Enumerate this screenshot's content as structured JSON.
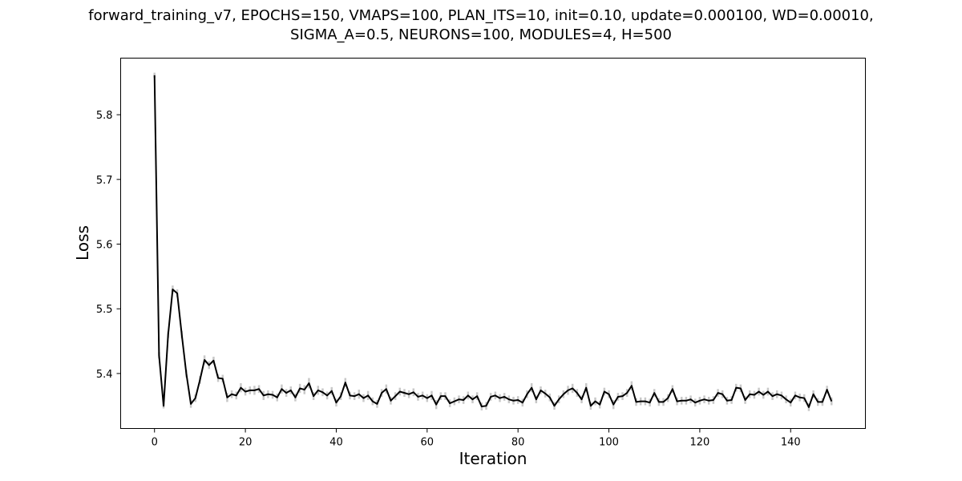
{
  "chart_data": {
    "type": "line",
    "title_lines": [
      "forward_training_v7, EPOCHS=150, VMAPS=100, PLAN_ITS=10, init=0.10, update=0.000100, WD=0.00010,",
      "SIGMA_A=0.5, NEURONS=100, MODULES=4, H=500"
    ],
    "xlabel": "Iteration",
    "ylabel": "Loss",
    "xlim": [
      -7.45,
      156.45
    ],
    "ylim": [
      5.315,
      5.8875
    ],
    "xticks": [
      0,
      20,
      40,
      60,
      80,
      100,
      120,
      140
    ],
    "yticks": [
      5.4,
      5.5,
      5.6,
      5.7,
      5.8
    ],
    "ytick_labels": [
      "5.4",
      "5.5",
      "5.6",
      "5.7",
      "5.8"
    ],
    "grid": false,
    "line_color": "#000000",
    "error_color": "#c8c8c8",
    "series": [
      {
        "values": [
          5.861,
          5.428,
          5.35,
          5.46,
          5.53,
          5.524,
          5.46,
          5.4,
          5.353,
          5.362,
          5.39,
          5.421,
          5.413,
          5.42,
          5.393,
          5.392,
          5.363,
          5.368,
          5.366,
          5.378,
          5.372,
          5.374,
          5.374,
          5.376,
          5.366,
          5.368,
          5.367,
          5.363,
          5.376,
          5.37,
          5.374,
          5.363,
          5.377,
          5.375,
          5.385,
          5.365,
          5.374,
          5.371,
          5.366,
          5.373,
          5.355,
          5.365,
          5.386,
          5.366,
          5.365,
          5.368,
          5.362,
          5.366,
          5.357,
          5.353,
          5.37,
          5.376,
          5.358,
          5.365,
          5.372,
          5.37,
          5.368,
          5.371,
          5.364,
          5.366,
          5.362,
          5.366,
          5.352,
          5.365,
          5.365,
          5.354,
          5.357,
          5.36,
          5.359,
          5.366,
          5.36,
          5.365,
          5.349,
          5.35,
          5.364,
          5.366,
          5.362,
          5.364,
          5.36,
          5.358,
          5.359,
          5.355,
          5.368,
          5.378,
          5.36,
          5.374,
          5.369,
          5.363,
          5.35,
          5.36,
          5.368,
          5.374,
          5.377,
          5.37,
          5.36,
          5.378,
          5.35,
          5.357,
          5.352,
          5.372,
          5.368,
          5.352,
          5.364,
          5.365,
          5.37,
          5.381,
          5.356,
          5.357,
          5.357,
          5.355,
          5.37,
          5.356,
          5.356,
          5.362,
          5.376,
          5.357,
          5.358,
          5.358,
          5.36,
          5.355,
          5.358,
          5.36,
          5.358,
          5.359,
          5.37,
          5.368,
          5.358,
          5.359,
          5.378,
          5.377,
          5.359,
          5.368,
          5.367,
          5.372,
          5.367,
          5.372,
          5.365,
          5.368,
          5.366,
          5.36,
          5.355,
          5.366,
          5.363,
          5.362,
          5.348,
          5.368,
          5.356,
          5.356,
          5.375,
          5.357
        ],
        "error": [
          0.004,
          0.005,
          0.004,
          0.005,
          0.006,
          0.006,
          0.006,
          0.006,
          0.006,
          0.006,
          0.006,
          0.007,
          0.006,
          0.006,
          0.006,
          0.006,
          0.007,
          0.006,
          0.006,
          0.007,
          0.006,
          0.006,
          0.007,
          0.006,
          0.007,
          0.006,
          0.006,
          0.006,
          0.007,
          0.006,
          0.006,
          0.006,
          0.007,
          0.007,
          0.008,
          0.006,
          0.007,
          0.006,
          0.006,
          0.006,
          0.006,
          0.006,
          0.007,
          0.006,
          0.006,
          0.007,
          0.006,
          0.007,
          0.006,
          0.006,
          0.006,
          0.007,
          0.006,
          0.006,
          0.006,
          0.006,
          0.006,
          0.006,
          0.006,
          0.006,
          0.006,
          0.007,
          0.007,
          0.006,
          0.006,
          0.006,
          0.006,
          0.006,
          0.006,
          0.006,
          0.006,
          0.006,
          0.006,
          0.006,
          0.006,
          0.006,
          0.006,
          0.006,
          0.006,
          0.006,
          0.006,
          0.006,
          0.006,
          0.007,
          0.006,
          0.006,
          0.006,
          0.006,
          0.006,
          0.006,
          0.006,
          0.007,
          0.007,
          0.006,
          0.006,
          0.007,
          0.006,
          0.006,
          0.006,
          0.006,
          0.006,
          0.007,
          0.006,
          0.006,
          0.006,
          0.007,
          0.006,
          0.006,
          0.006,
          0.006,
          0.006,
          0.006,
          0.006,
          0.006,
          0.006,
          0.006,
          0.006,
          0.006,
          0.006,
          0.006,
          0.006,
          0.006,
          0.006,
          0.006,
          0.006,
          0.006,
          0.006,
          0.006,
          0.006,
          0.006,
          0.006,
          0.006,
          0.006,
          0.006,
          0.006,
          0.006,
          0.006,
          0.006,
          0.006,
          0.006,
          0.006,
          0.006,
          0.006,
          0.006,
          0.006,
          0.006,
          0.006,
          0.006,
          0.006,
          0.006
        ]
      }
    ]
  }
}
